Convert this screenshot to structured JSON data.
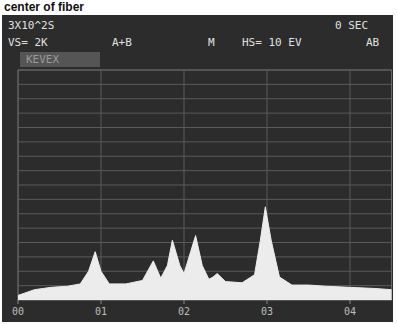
{
  "chart_data": {
    "type": "area",
    "title": "center of fiber",
    "annotations": [
      "3X10^2S",
      "0 SEC",
      "VS= 2K",
      "A+B",
      "M",
      "HS= 10 EV",
      "AB",
      "KEVEX"
    ],
    "x": [
      0.0,
      0.2,
      0.4,
      0.6,
      0.75,
      0.85,
      0.93,
      1.0,
      1.1,
      1.3,
      1.5,
      1.63,
      1.72,
      1.8,
      1.86,
      1.95,
      2.0,
      2.08,
      2.14,
      2.22,
      2.3,
      2.35,
      2.4,
      2.5,
      2.7,
      2.85,
      2.92,
      2.98,
      3.05,
      3.15,
      3.3,
      3.5,
      3.7,
      4.0,
      4.3,
      4.5
    ],
    "values": [
      40,
      90,
      110,
      120,
      140,
      250,
      420,
      250,
      140,
      140,
      170,
      340,
      190,
      300,
      520,
      300,
      230,
      420,
      560,
      300,
      180,
      200,
      230,
      160,
      150,
      220,
      520,
      810,
      520,
      200,
      130,
      130,
      120,
      110,
      100,
      90
    ],
    "color": "#ececec",
    "xlim": [
      0,
      4.5
    ],
    "xticks": [
      {
        "value": 0,
        "label": "00"
      },
      {
        "value": 1,
        "label": "01"
      },
      {
        "value": 2,
        "label": "02"
      },
      {
        "value": 3,
        "label": "03"
      },
      {
        "value": 4,
        "label": "04"
      }
    ],
    "ylim": [
      0,
      2000
    ],
    "yticks": [
      0,
      125,
      250,
      375,
      500,
      625,
      750,
      875,
      1000,
      1125,
      1250,
      1375,
      1500,
      1625,
      1750,
      1875,
      2000
    ],
    "grid": true,
    "tick_labels": "x"
  }
}
